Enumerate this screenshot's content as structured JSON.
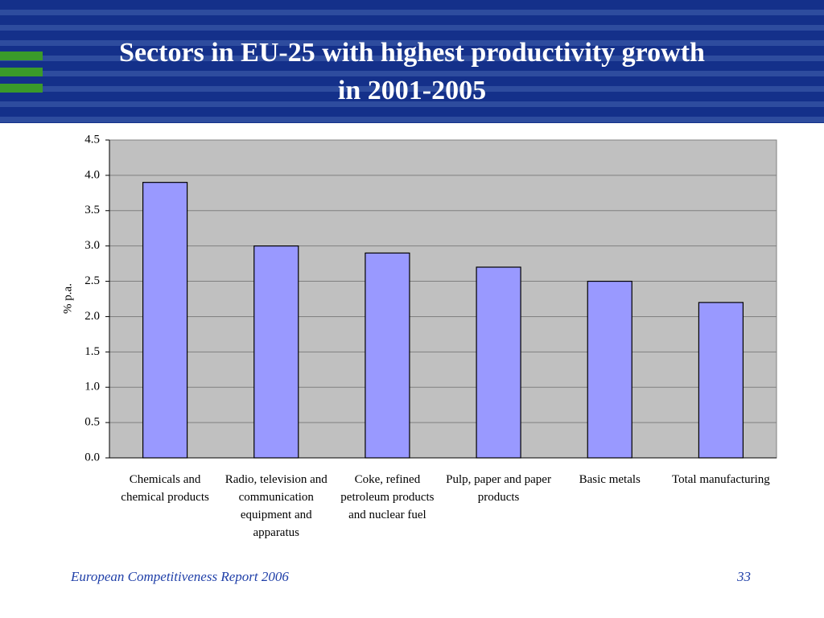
{
  "chart_data": {
    "type": "bar",
    "title": "Sectors in EU-25 with highest productivity growth in 2001-2005",
    "y_label": "% p.a.",
    "categories": [
      "Chemicals and chemical products",
      "Radio, television and communication equipment and apparatus",
      "Coke, refined petroleum products and nuclear fuel",
      "Pulp, paper and paper products",
      "Basic metals",
      "Total manufacturing"
    ],
    "values": [
      3.9,
      3.0,
      2.9,
      2.7,
      2.5,
      2.2
    ],
    "color": "#9999ff",
    "ylim": [
      0,
      4.5
    ],
    "yticks": [
      {
        "value": 0,
        "label": "0.0"
      },
      0.5,
      {
        "value": 1,
        "label": "1.0"
      },
      1.5,
      {
        "value": 2,
        "label": "2.0"
      },
      2.5,
      {
        "value": 3,
        "label": "3.0"
      },
      3.5,
      {
        "value": 4,
        "label": "4.0"
      },
      4.5
    ],
    "grid": true
  },
  "footer": {
    "source": "European Competitiveness Report 2006",
    "page": "33"
  }
}
